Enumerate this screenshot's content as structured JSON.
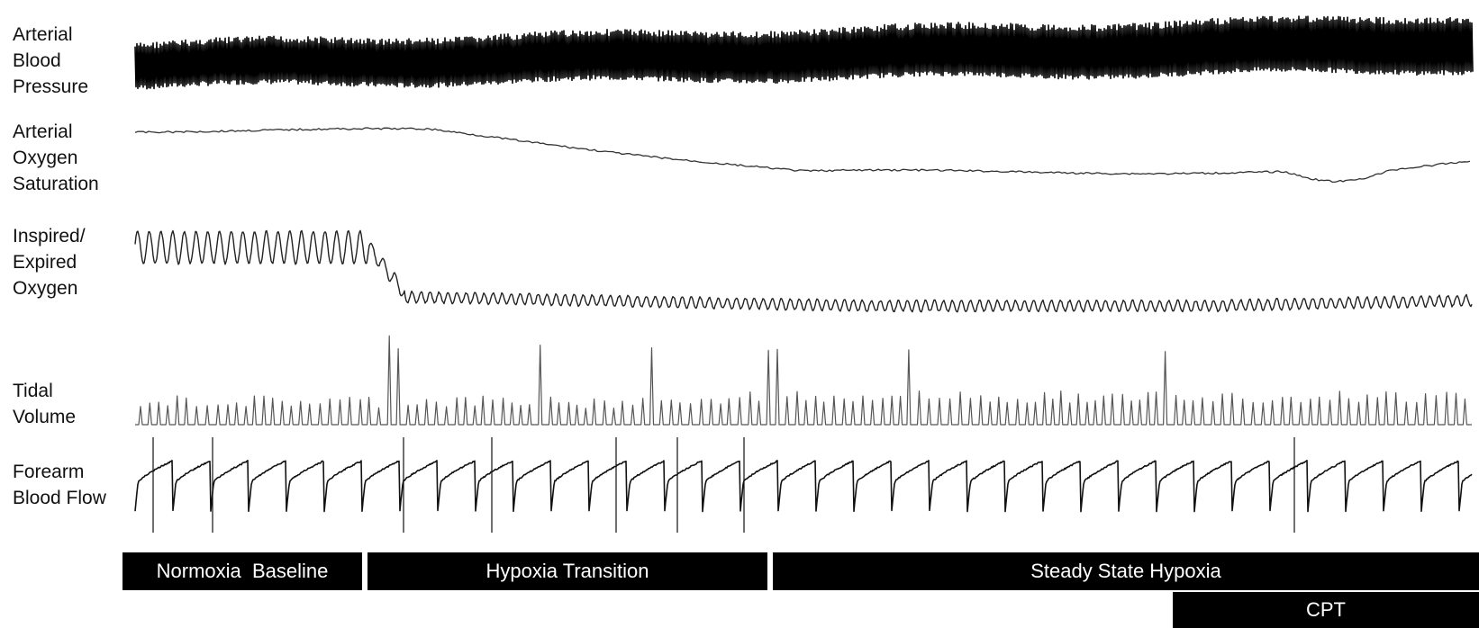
{
  "chart_data": {
    "type": "line",
    "title": "",
    "xlabel": "",
    "ylabel": "",
    "series": [
      {
        "name": "Arterial Blood Pressure",
        "label_lines": [
          "Arterial",
          "Blood",
          "Pressure"
        ],
        "color": "#000000"
      },
      {
        "name": "Arterial Oxygen Saturation",
        "label_lines": [
          "Arterial",
          "Oxygen",
          "Saturation"
        ],
        "color": "#333333"
      },
      {
        "name": "Inspired/ Expired Oxygen",
        "label_lines": [
          "Inspired/",
          "Expired",
          "Oxygen"
        ],
        "color": "#222222"
      },
      {
        "name": "Tidal Volume",
        "label_lines": [
          "Tidal",
          "Volume"
        ],
        "color": "#555555"
      },
      {
        "name": "Forearm Blood Flow",
        "label_lines": [
          "Forearm",
          "Blood Flow"
        ],
        "color": "#111111"
      }
    ],
    "phases": [
      {
        "label": "Normoxia  Baseline"
      },
      {
        "label": "Hypoxia Transition"
      },
      {
        "label": "Steady State Hypoxia"
      },
      {
        "label": "CPT"
      }
    ]
  }
}
